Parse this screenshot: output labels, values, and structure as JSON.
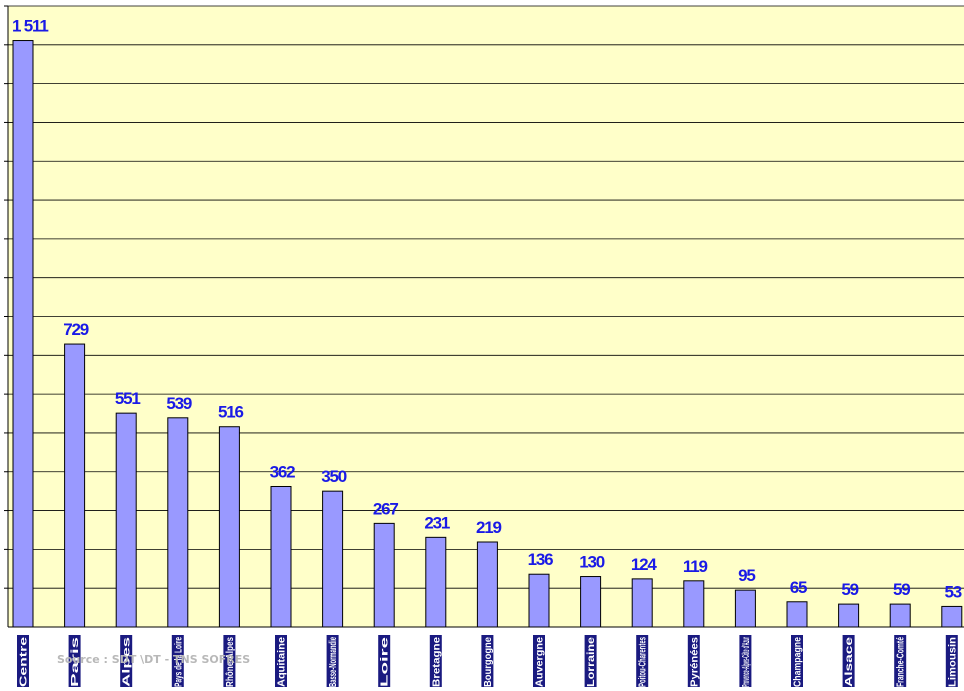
{
  "chart_data": {
    "type": "bar",
    "title": "",
    "xlabel": "",
    "ylabel": "",
    "ylim": [
      0,
      1600
    ],
    "y_gridline_step": 100,
    "grid": true,
    "legend": "none",
    "categories": [
      "Centre",
      "Paris",
      "Alpes",
      "Pays de la Loire",
      "Rhône-Alpes",
      "Aquitaine",
      "Basse-Normandie",
      "Loire",
      "Bretagne",
      "Bourgogne",
      "Auvergne",
      "Lorraine",
      "Poitou-Charentes",
      "Pyrénées",
      "Provence-Alpes-Côte d'Azur",
      "Champagne",
      "Alsace",
      "Franche-Comté",
      "Limousin"
    ],
    "values": [
      1511,
      729,
      551,
      539,
      516,
      362,
      350,
      267,
      231,
      219,
      136,
      130,
      124,
      119,
      95,
      65,
      59,
      59,
      53
    ],
    "value_labels": [
      "1 511",
      "729",
      "551",
      "539",
      "516",
      "362",
      "350",
      "267",
      "231",
      "219",
      "136",
      "130",
      "124",
      "119",
      "95",
      "65",
      "59",
      "59",
      "53"
    ],
    "colors": {
      "plot_background": "#ffffc9",
      "bar_fill": "#9999ff",
      "bar_stroke": "#000000",
      "value_label": "#1a1ae6",
      "category_label_box": "#1a1a80",
      "gridline": "#000000"
    }
  },
  "source_note": "Source : SDT \\DT - TNS SOFRES"
}
